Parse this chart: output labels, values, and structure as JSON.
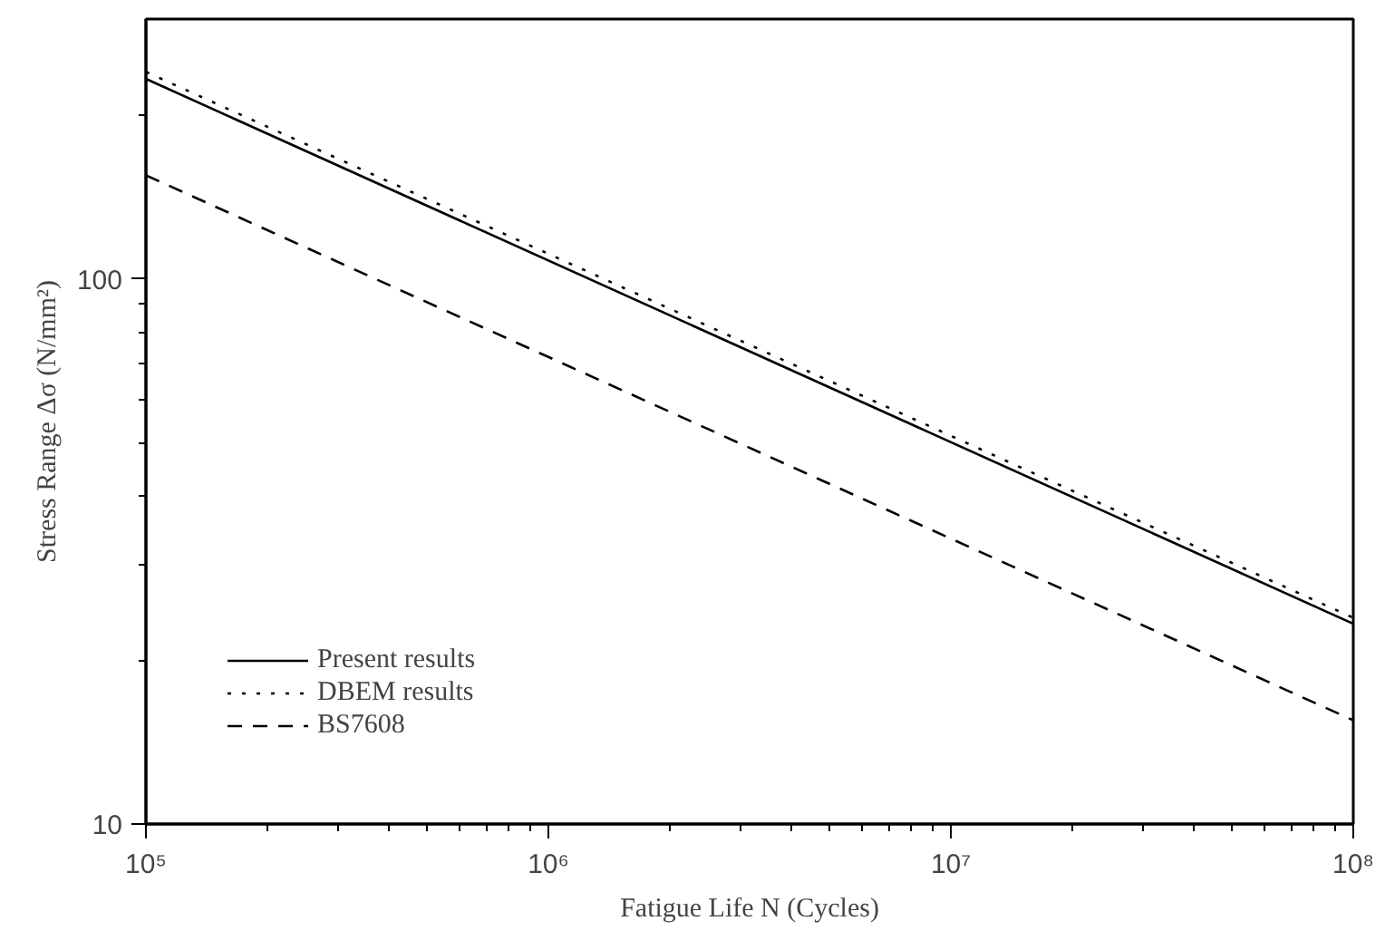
{
  "chart_data": {
    "type": "line",
    "xlabel": "Fatigue Life N (Cycles)",
    "ylabel": "Stress Range Δσ (N/mm²)",
    "log": "xy",
    "xlim": [
      100000,
      100000000
    ],
    "ylim": [
      10,
      300
    ],
    "xticks": [
      {
        "value": 100000,
        "label": "10⁵"
      },
      {
        "value": 200000,
        "label": null
      },
      {
        "value": 300000,
        "label": null
      },
      {
        "value": 400000,
        "label": null
      },
      {
        "value": 500000,
        "label": null
      },
      {
        "value": 600000,
        "label": null
      },
      {
        "value": 700000,
        "label": null
      },
      {
        "value": 800000,
        "label": null
      },
      {
        "value": 900000,
        "label": null
      },
      {
        "value": 1000000,
        "label": "10⁶"
      },
      {
        "value": 2000000,
        "label": null
      },
      {
        "value": 3000000,
        "label": null
      },
      {
        "value": 4000000,
        "label": null
      },
      {
        "value": 5000000,
        "label": null
      },
      {
        "value": 6000000,
        "label": null
      },
      {
        "value": 7000000,
        "label": null
      },
      {
        "value": 8000000,
        "label": null
      },
      {
        "value": 9000000,
        "label": null
      },
      {
        "value": 10000000,
        "label": "10⁷"
      },
      {
        "value": 20000000,
        "label": null
      },
      {
        "value": 30000000,
        "label": null
      },
      {
        "value": 40000000,
        "label": null
      },
      {
        "value": 50000000,
        "label": null
      },
      {
        "value": 60000000,
        "label": null
      },
      {
        "value": 70000000,
        "label": null
      },
      {
        "value": 80000000,
        "label": null
      },
      {
        "value": 90000000,
        "label": null
      },
      {
        "value": 100000000,
        "label": "10⁸"
      }
    ],
    "yticks": [
      10,
      {
        "value": 20,
        "label": null
      },
      {
        "value": 30,
        "label": null
      },
      {
        "value": 40,
        "label": null
      },
      {
        "value": 50,
        "label": null
      },
      {
        "value": 60,
        "label": null
      },
      {
        "value": 70,
        "label": null
      },
      {
        "value": 80,
        "label": null
      },
      {
        "value": 90,
        "label": null
      },
      100,
      {
        "value": 200,
        "label": null
      }
    ],
    "grid": false,
    "legend": "bottom left",
    "marker": "none",
    "x": [
      100000,
      100000000
    ],
    "series": [
      {
        "name": "Present results",
        "color": "#000000",
        "line_style": "solid",
        "values": [
          233,
          23.3
        ]
      },
      {
        "name": "DBEM results",
        "color": "#000000",
        "line_style": "dotted",
        "values": [
          240,
          23.9
        ]
      },
      {
        "name": "BS7608",
        "color": "#000000",
        "line_style": "dashed",
        "values": [
          155,
          15.5
        ]
      }
    ]
  }
}
